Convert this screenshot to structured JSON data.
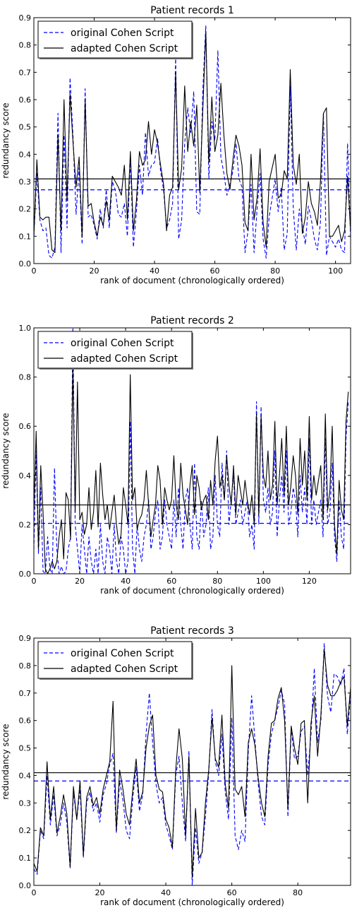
{
  "chart_data": [
    {
      "type": "line",
      "title": "Patient records 1",
      "xlabel": "rank of document (chronologically ordered)",
      "ylabel": "redundancy score",
      "xlim": [
        0,
        105
      ],
      "ylim": [
        0,
        0.9
      ],
      "xticks": [
        0,
        20,
        40,
        60,
        80,
        100
      ],
      "yticks": [
        0.0,
        0.1,
        0.2,
        0.3,
        0.4,
        0.5,
        0.6,
        0.7,
        0.8,
        0.9
      ],
      "legend": {
        "position": "top-left",
        "entries": [
          "original Cohen Script",
          "adapted Cohen Script"
        ]
      },
      "hlines": {
        "original": 0.27,
        "adapted": 0.31
      },
      "series": [
        {
          "name": "original Cohen Script",
          "style": "dashed",
          "color": "#0000ff",
          "values": [
            0.1,
            0.33,
            0.16,
            0.12,
            0.13,
            0.03,
            0.02,
            0.06,
            0.55,
            0.04,
            0.47,
            0.13,
            0.68,
            0.46,
            0.18,
            0.35,
            0.07,
            0.64,
            0.17,
            0.18,
            0.14,
            0.09,
            0.2,
            0.13,
            0.27,
            0.13,
            0.3,
            0.27,
            0.18,
            0.17,
            0.22,
            0.1,
            0.38,
            0.06,
            0.19,
            0.36,
            0.25,
            0.48,
            0.32,
            0.36,
            0.37,
            0.46,
            0.34,
            0.27,
            0.13,
            0.16,
            0.22,
            0.76,
            0.09,
            0.16,
            0.44,
            0.57,
            0.48,
            0.63,
            0.19,
            0.18,
            0.63,
            0.87,
            0.31,
            0.52,
            0.45,
            0.78,
            0.39,
            0.33,
            0.25,
            0.29,
            0.34,
            0.44,
            0.31,
            0.28,
            0.04,
            0.12,
            0.29,
            0.04,
            0.2,
            0.33,
            0.09,
            0.02,
            0.17,
            0.24,
            0.31,
            0.19,
            0.28,
            0.05,
            0.11,
            0.65,
            0.2,
            0.05,
            0.2,
            0.14,
            0.07,
            0.21,
            0.16,
            0.09,
            0.05,
            0.15,
            0.55,
            0.03,
            0.1,
            0.08,
            0.06,
            0.09,
            0.05,
            0.04,
            0.44,
            0.09
          ]
        },
        {
          "name": "adapted Cohen Script",
          "style": "solid",
          "color": "#000000",
          "values": [
            0.1,
            0.38,
            0.17,
            0.16,
            0.17,
            0.17,
            0.05,
            0.04,
            0.47,
            0.12,
            0.6,
            0.23,
            0.62,
            0.44,
            0.28,
            0.39,
            0.1,
            0.6,
            0.21,
            0.22,
            0.15,
            0.1,
            0.17,
            0.14,
            0.23,
            0.16,
            0.32,
            0.3,
            0.28,
            0.25,
            0.36,
            0.16,
            0.41,
            0.12,
            0.23,
            0.41,
            0.36,
            0.38,
            0.52,
            0.4,
            0.49,
            0.44,
            0.36,
            0.29,
            0.12,
            0.25,
            0.28,
            0.7,
            0.27,
            0.35,
            0.65,
            0.41,
            0.52,
            0.43,
            0.58,
            0.26,
            0.56,
            0.85,
            0.37,
            0.61,
            0.41,
            0.47,
            0.66,
            0.47,
            0.33,
            0.27,
            0.38,
            0.47,
            0.43,
            0.36,
            0.15,
            0.12,
            0.4,
            0.16,
            0.24,
            0.42,
            0.15,
            0.06,
            0.3,
            0.35,
            0.4,
            0.24,
            0.25,
            0.34,
            0.31,
            0.71,
            0.36,
            0.29,
            0.4,
            0.11,
            0.17,
            0.3,
            0.22,
            0.19,
            0.14,
            0.3,
            0.55,
            0.57,
            0.1,
            0.1,
            0.12,
            0.14,
            0.08,
            0.12,
            0.32,
            0.12
          ]
        }
      ]
    },
    {
      "type": "line",
      "title": "Patient records 2",
      "xlabel": "rank of document (chronologically ordered)",
      "ylabel": "redundancy score",
      "xlim": [
        0,
        138
      ],
      "ylim": [
        0,
        1.0
      ],
      "xticks": [
        0,
        20,
        40,
        60,
        80,
        100,
        120
      ],
      "yticks": [
        0.0,
        0.2,
        0.4,
        0.6,
        0.8,
        1.0
      ],
      "legend": {
        "position": "top-left",
        "entries": [
          "original Cohen Script",
          "adapted Cohen Script"
        ]
      },
      "hlines": {
        "original": 0.205,
        "adapted": 0.28
      },
      "series": [
        {
          "name": "original Cohen Script",
          "style": "dashed",
          "color": "#0000ff",
          "values": [
            0.1,
            0.5,
            0.08,
            0.35,
            0.01,
            0.0,
            0.15,
            0.02,
            0.0,
            0.43,
            0.1,
            0.0,
            0.03,
            0.0,
            0.01,
            0.1,
            0.15,
            1.0,
            0.2,
            0.1,
            0.0,
            0.2,
            0.1,
            0.0,
            0.15,
            0.05,
            0.0,
            0.1,
            0.0,
            0.2,
            0.05,
            0.0,
            0.15,
            0.1,
            0.0,
            0.2,
            0.05,
            0.0,
            0.15,
            0.1,
            0.0,
            0.05,
            0.62,
            0.1,
            0.0,
            0.2,
            0.1,
            0.05,
            0.15,
            0.2,
            0.3,
            0.1,
            0.15,
            0.25,
            0.3,
            0.1,
            0.15,
            0.3,
            0.2,
            0.15,
            0.1,
            0.3,
            0.15,
            0.35,
            0.2,
            0.1,
            0.3,
            0.35,
            0.2,
            0.1,
            0.45,
            0.15,
            0.1,
            0.3,
            0.15,
            0.2,
            0.35,
            0.1,
            0.15,
            0.4,
            0.2,
            0.15,
            0.45,
            0.3,
            0.5,
            0.2,
            0.3,
            0.4,
            0.2,
            0.25,
            0.3,
            0.2,
            0.25,
            0.3,
            0.15,
            0.2,
            0.1,
            0.7,
            0.2,
            0.68,
            0.3,
            0.25,
            0.35,
            0.2,
            0.25,
            0.5,
            0.15,
            0.3,
            0.4,
            0.25,
            0.5,
            0.2,
            0.25,
            0.35,
            0.3,
            0.15,
            0.4,
            0.25,
            0.35,
            0.2,
            0.55,
            0.2,
            0.3,
            0.2,
            0.25,
            0.3,
            0.15,
            0.55,
            0.2,
            0.25,
            0.45,
            0.15,
            0.05,
            0.3,
            0.15,
            0.1,
            0.55,
            0.7
          ]
        },
        {
          "name": "adapted Cohen Script",
          "style": "solid",
          "color": "#000000",
          "values": [
            0.25,
            0.58,
            0.1,
            0.44,
            0.25,
            0.02,
            0.0,
            0.02,
            0.05,
            0.02,
            0.05,
            0.15,
            0.22,
            0.06,
            0.33,
            0.3,
            0.14,
            0.85,
            0.25,
            0.78,
            0.22,
            0.25,
            0.16,
            0.2,
            0.35,
            0.18,
            0.25,
            0.42,
            0.19,
            0.45,
            0.32,
            0.22,
            0.28,
            0.18,
            0.25,
            0.32,
            0.2,
            0.12,
            0.16,
            0.35,
            0.28,
            0.2,
            0.81,
            0.3,
            0.35,
            0.18,
            0.22,
            0.24,
            0.3,
            0.42,
            0.28,
            0.15,
            0.22,
            0.28,
            0.44,
            0.38,
            0.2,
            0.35,
            0.3,
            0.26,
            0.3,
            0.48,
            0.28,
            0.22,
            0.45,
            0.32,
            0.26,
            0.2,
            0.36,
            0.44,
            0.24,
            0.4,
            0.35,
            0.26,
            0.3,
            0.32,
            0.22,
            0.38,
            0.28,
            0.46,
            0.56,
            0.35,
            0.4,
            0.3,
            0.48,
            0.36,
            0.28,
            0.44,
            0.24,
            0.4,
            0.34,
            0.28,
            0.38,
            0.3,
            0.24,
            0.32,
            0.2,
            0.65,
            0.24,
            0.64,
            0.4,
            0.35,
            0.5,
            0.3,
            0.36,
            0.62,
            0.28,
            0.4,
            0.55,
            0.32,
            0.6,
            0.28,
            0.36,
            0.48,
            0.4,
            0.24,
            0.55,
            0.36,
            0.5,
            0.3,
            0.64,
            0.3,
            0.4,
            0.32,
            0.38,
            0.44,
            0.22,
            0.65,
            0.26,
            0.34,
            0.6,
            0.2,
            0.08,
            0.38,
            0.26,
            0.22,
            0.62,
            0.74
          ]
        }
      ]
    },
    {
      "type": "line",
      "title": "Patient records 3",
      "xlabel": "rank of document (chronologically ordered)",
      "ylabel": "redundancy score",
      "xlim": [
        0,
        96
      ],
      "ylim": [
        0,
        0.9
      ],
      "xticks": [
        0,
        20,
        40,
        60,
        80
      ],
      "yticks": [
        0.0,
        0.1,
        0.2,
        0.3,
        0.4,
        0.5,
        0.6,
        0.7,
        0.8,
        0.9
      ],
      "legend": {
        "position": "top-left",
        "entries": [
          "original Cohen Script",
          "adapted Cohen Script"
        ]
      },
      "hlines": {
        "original": 0.38,
        "adapted": 0.41
      },
      "series": [
        {
          "name": "original Cohen Script",
          "style": "dashed",
          "color": "#0000ff",
          "values": [
            0.06,
            0.04,
            0.2,
            0.17,
            0.4,
            0.22,
            0.33,
            0.18,
            0.22,
            0.3,
            0.23,
            0.06,
            0.34,
            0.24,
            0.35,
            0.1,
            0.3,
            0.34,
            0.27,
            0.3,
            0.23,
            0.33,
            0.37,
            0.44,
            0.48,
            0.19,
            0.38,
            0.31,
            0.2,
            0.17,
            0.32,
            0.43,
            0.27,
            0.33,
            0.55,
            0.7,
            0.52,
            0.37,
            0.3,
            0.32,
            0.22,
            0.18,
            0.13,
            0.4,
            0.47,
            0.3,
            0.16,
            0.49,
            0.0,
            0.21,
            0.08,
            0.12,
            0.25,
            0.41,
            0.64,
            0.45,
            0.4,
            0.55,
            0.34,
            0.24,
            0.61,
            0.18,
            0.13,
            0.2,
            0.16,
            0.49,
            0.69,
            0.53,
            0.37,
            0.25,
            0.22,
            0.44,
            0.55,
            0.6,
            0.65,
            0.71,
            0.66,
            0.25,
            0.57,
            0.46,
            0.47,
            0.56,
            0.58,
            0.4,
            0.55,
            0.79,
            0.52,
            0.6,
            0.88,
            0.69,
            0.63,
            0.77,
            0.76,
            0.73,
            0.79,
            0.55,
            0.7
          ]
        },
        {
          "name": "adapted Cohen Script",
          "style": "solid",
          "color": "#000000",
          "values": [
            0.08,
            0.05,
            0.21,
            0.18,
            0.45,
            0.24,
            0.36,
            0.19,
            0.25,
            0.33,
            0.26,
            0.07,
            0.36,
            0.24,
            0.38,
            0.11,
            0.32,
            0.36,
            0.29,
            0.32,
            0.26,
            0.35,
            0.4,
            0.45,
            0.67,
            0.2,
            0.42,
            0.35,
            0.26,
            0.22,
            0.35,
            0.46,
            0.3,
            0.34,
            0.5,
            0.58,
            0.62,
            0.4,
            0.35,
            0.34,
            0.24,
            0.21,
            0.14,
            0.42,
            0.57,
            0.46,
            0.18,
            0.47,
            0.03,
            0.28,
            0.1,
            0.12,
            0.3,
            0.42,
            0.61,
            0.46,
            0.43,
            0.62,
            0.37,
            0.28,
            0.8,
            0.35,
            0.33,
            0.36,
            0.25,
            0.52,
            0.57,
            0.51,
            0.39,
            0.3,
            0.25,
            0.47,
            0.59,
            0.6,
            0.68,
            0.72,
            0.6,
            0.28,
            0.58,
            0.5,
            0.44,
            0.59,
            0.6,
            0.3,
            0.59,
            0.69,
            0.47,
            0.62,
            0.86,
            0.73,
            0.69,
            0.69,
            0.71,
            0.74,
            0.76,
            0.58,
            0.72
          ]
        }
      ]
    }
  ]
}
